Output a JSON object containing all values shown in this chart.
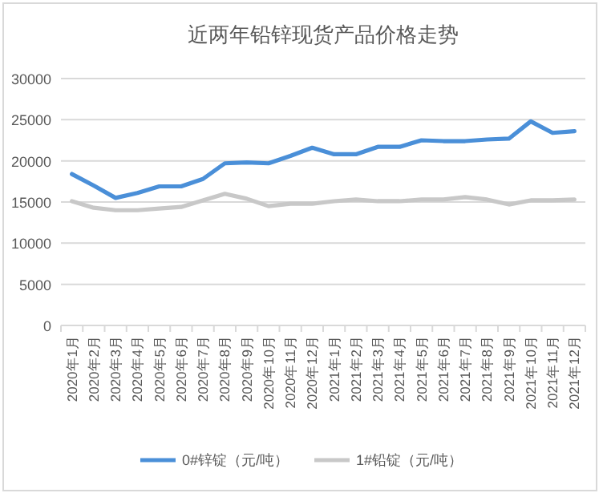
{
  "chart_data": {
    "type": "line",
    "title": "近两年铅锌现货产品价格走势",
    "categories": [
      "2020年1月",
      "2020年2月",
      "2020年3月",
      "2020年4月",
      "2020年5月",
      "2020年6月",
      "2020年7月",
      "2020年8月",
      "2020年9月",
      "2020年10月",
      "2020年11月",
      "2020年12月",
      "2021年1月",
      "2021年2月",
      "2021年3月",
      "2021年4月",
      "2021年5月",
      "2021年6月",
      "2021年7月",
      "2021年8月",
      "2021年9月",
      "2021年10月",
      "2021年11月",
      "2021年12月"
    ],
    "series": [
      {
        "name": "0#锌锭（元/吨）",
        "color": "#4a8fd8",
        "values": [
          18400,
          17000,
          15500,
          16100,
          16900,
          16900,
          17800,
          19700,
          19800,
          19700,
          20600,
          21600,
          20800,
          20800,
          21700,
          21700,
          22500,
          22400,
          22400,
          22600,
          22700,
          24800,
          23400,
          23600
        ]
      },
      {
        "name": "1#铅锭（元/吨）",
        "color": "#c8c8c8",
        "values": [
          15100,
          14300,
          14000,
          14000,
          14200,
          14400,
          15200,
          16000,
          15400,
          14500,
          14800,
          14800,
          15100,
          15300,
          15100,
          15100,
          15300,
          15300,
          15600,
          15300,
          14700,
          15200,
          15200,
          15300
        ]
      }
    ],
    "ylim": [
      0,
      30000
    ],
    "yticks": [
      0,
      5000,
      10000,
      15000,
      20000,
      25000,
      30000
    ],
    "grid": "y",
    "legend": "bottom",
    "marker": "none",
    "line_style": "solid"
  }
}
